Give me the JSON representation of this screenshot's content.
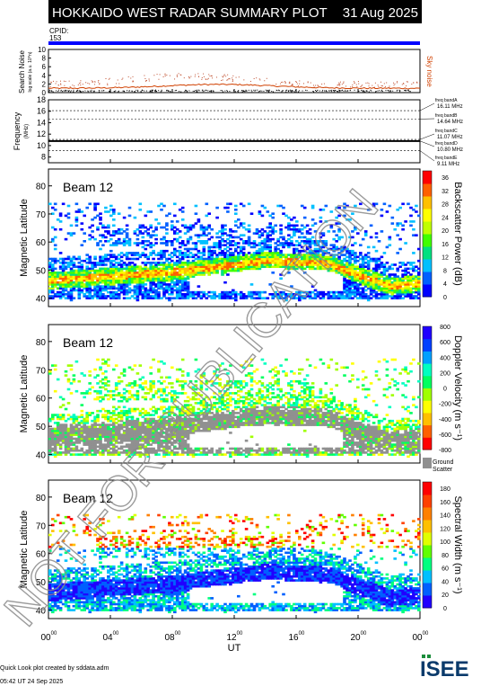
{
  "header": {
    "title": "HOKKAIDO WEST RADAR SUMMARY PLOT",
    "date": "31 Aug 2025"
  },
  "cpid": {
    "label": "CPID:",
    "value": "153"
  },
  "noise": {
    "ylabel": "Search Noise",
    "ylabel_units": "log scale (a.u. 10^n)",
    "side_label": "Sky noise",
    "ticks": [
      "0",
      "2",
      "4",
      "6",
      "8",
      "10"
    ]
  },
  "freq": {
    "ylabel": "Frequency",
    "ylabel_units": "(MHz)",
    "ticks": [
      "8",
      "10",
      "12",
      "14",
      "16",
      "18"
    ],
    "bands": [
      {
        "label": "freq bandA",
        "value": "16.11 MHz"
      },
      {
        "label": "freq bandB",
        "value": "14.64 MHz"
      },
      {
        "label": "freq bandC",
        "value": "11.07 MHz"
      },
      {
        "label": "freq bandD",
        "value": "10.80 MHz"
      },
      {
        "label": "freq bandE",
        "value": "9.11 MHz"
      }
    ]
  },
  "panels": [
    {
      "beam": "Beam 12",
      "ylabel": "Magnetic Latitude",
      "cbar_label": "Backscatter Power (dB)",
      "cbar_ticks": [
        "0",
        "4",
        "8",
        "12",
        "16",
        "20",
        "24",
        "28",
        "32",
        "36"
      ]
    },
    {
      "beam": "Beam 12",
      "ylabel": "Magnetic Latitude",
      "cbar_label": "Doppler Velocity (m s⁻¹)",
      "cbar_ticks": [
        "-800",
        "-600",
        "-400",
        "-200",
        "0",
        "200",
        "400",
        "600",
        "800"
      ],
      "gs_label": "Ground",
      "gs_label2": "Scatter"
    },
    {
      "beam": "Beam 12",
      "ylabel": "Magnetic Latitude",
      "cbar_label": "Spectral Width (m s⁻¹)",
      "cbar_ticks": [
        "0",
        "20",
        "40",
        "60",
        "80",
        "100",
        "120",
        "140",
        "160",
        "180"
      ]
    }
  ],
  "lat_ticks": [
    "40",
    "50",
    "60",
    "70",
    "80"
  ],
  "time_ticks": [
    "00",
    "04",
    "08",
    "12",
    "16",
    "20",
    "00"
  ],
  "time_sup": "00",
  "xlabel": "UT",
  "footer": {
    "line1": "Quick Look plot created by sddata.adm",
    "line2": "05:42 UT 24 Sep 2025",
    "logo": "ISEE"
  },
  "watermark": "NOT FOR PUBLICATION",
  "chart_data": [
    {
      "type": "line",
      "title": "Search Noise",
      "ylim": [
        0,
        10
      ],
      "series": [
        {
          "name": "Sky noise",
          "x": [
            0,
            4,
            8,
            12,
            16,
            20,
            24
          ],
          "values": [
            1.0,
            1.3,
            1.8,
            2.0,
            1.6,
            1.1,
            1.0
          ]
        }
      ]
    },
    {
      "type": "line",
      "title": "Frequency",
      "ylim": [
        8,
        18
      ],
      "series": [
        {
          "name": "Frequency",
          "x": [
            0,
            24
          ],
          "values": [
            10.8,
            10.8
          ]
        }
      ]
    },
    {
      "type": "heatmap",
      "title": "Backscatter Power (dB)",
      "xlim": [
        0,
        24
      ],
      "ylim": [
        38,
        85
      ],
      "main_band_lat": [
        [
          0,
          46
        ],
        [
          8,
          49
        ],
        [
          14,
          53
        ],
        [
          18,
          52
        ],
        [
          22,
          44
        ],
        [
          24,
          45
        ]
      ]
    },
    {
      "type": "heatmap",
      "title": "Doppler Velocity",
      "xlim": [
        0,
        24
      ],
      "ylim": [
        38,
        85
      ],
      "ground_scatter": true
    },
    {
      "type": "heatmap",
      "title": "Spectral Width",
      "xlim": [
        0,
        24
      ],
      "ylim": [
        38,
        85
      ]
    }
  ]
}
